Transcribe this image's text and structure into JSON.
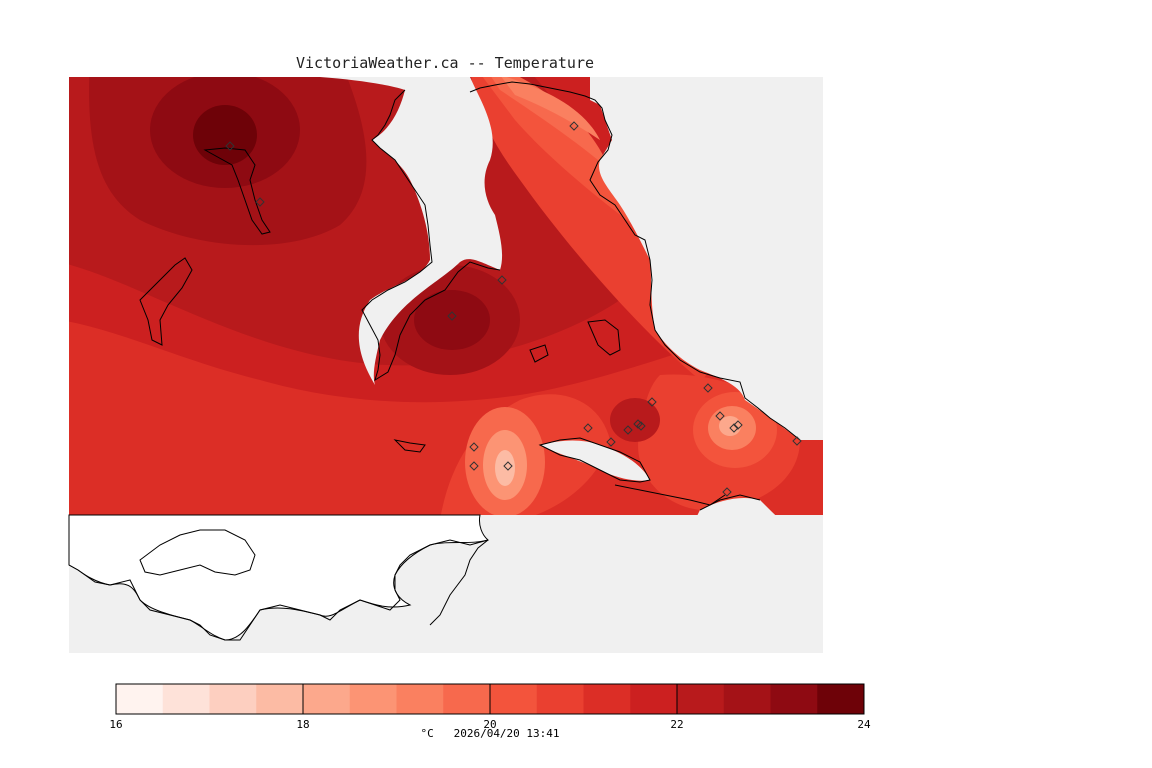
{
  "title": "VictoriaWeather.ca -- Temperature",
  "colors": {
    "sea": "#f0f0f0",
    "land_outside_grid": "#ffffff",
    "coast": "#000000",
    "scale": [
      "#fff3ef",
      "#fee2d9",
      "#fdcfc0",
      "#fcbba4",
      "#fca88c",
      "#fc9474",
      "#fa8060",
      "#f7694d",
      "#f3543c",
      "#ea4030",
      "#dc2e26",
      "#cc2020",
      "#b81a1c",
      "#a41217",
      "#8e0a12",
      "#6e0208"
    ]
  },
  "legend": {
    "min": 16,
    "max": 24,
    "step": 0.5,
    "tick_labels": [
      "16",
      "18",
      "20",
      "22",
      "24"
    ],
    "unit": "°C",
    "timestamp": "2026/04/20 13:41"
  }
}
